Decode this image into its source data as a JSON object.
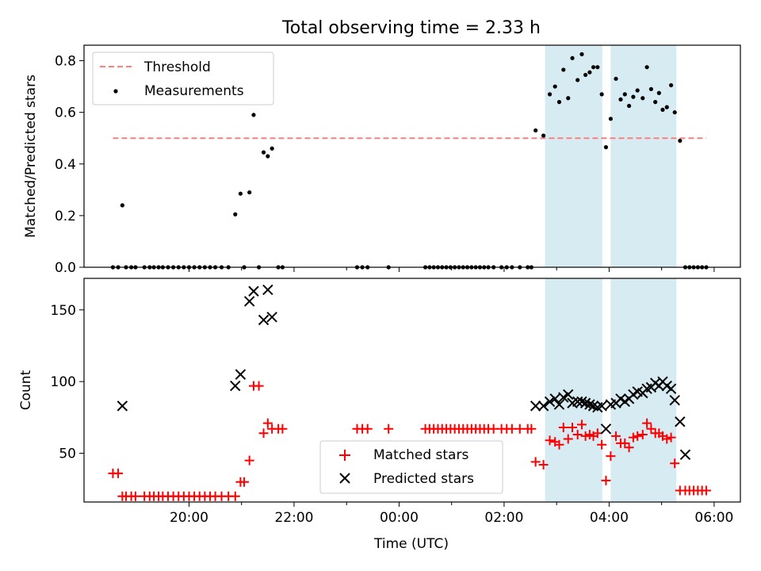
{
  "figure": {
    "title": "Total observing time = 2.33 h",
    "x_axis_label": "Time (UTC)",
    "x_tick_labels": [
      "20:00",
      "22:00",
      "00:00",
      "02:00",
      "04:00",
      "06:00"
    ]
  },
  "colors": {
    "threshold": "#ff7f7f",
    "measurement": "#000000",
    "matched": "#ff0000",
    "predicted": "#000000",
    "observing_span": "#add8e6"
  },
  "chart_data": [
    {
      "type": "scatter",
      "panel": "top",
      "ylabel": "Matched/Predicted stars",
      "xunit": "hours since 18:00 UTC",
      "xlim": [
        18.0,
        30.5
      ],
      "ylim": [
        0.0,
        0.86
      ],
      "y_ticks": [
        0.0,
        0.2,
        0.4,
        0.6,
        0.8
      ],
      "y_tick_labels": [
        "0.0",
        "0.2",
        "0.4",
        "0.6",
        "0.8"
      ],
      "legend": {
        "placement": "top-left",
        "entries": [
          "Threshold",
          "Measurements"
        ]
      },
      "threshold": {
        "name": "Threshold",
        "y": 0.5,
        "x_range": [
          18.55,
          29.85
        ]
      },
      "observing_spans": [
        [
          26.78,
          27.87
        ],
        [
          28.03,
          29.28
        ]
      ],
      "series": [
        {
          "name": "Measurements",
          "points": [
            [
              18.55,
              0
            ],
            [
              18.65,
              0
            ],
            [
              18.73,
              0.24
            ],
            [
              18.8,
              0
            ],
            [
              18.9,
              0
            ],
            [
              18.98,
              0
            ],
            [
              19.15,
              0
            ],
            [
              19.25,
              0
            ],
            [
              19.33,
              0
            ],
            [
              19.42,
              0
            ],
            [
              19.5,
              0
            ],
            [
              19.6,
              0
            ],
            [
              19.7,
              0
            ],
            [
              19.8,
              0
            ],
            [
              19.9,
              0
            ],
            [
              20.0,
              0
            ],
            [
              20.1,
              0
            ],
            [
              20.2,
              0
            ],
            [
              20.3,
              0
            ],
            [
              20.4,
              0
            ],
            [
              20.5,
              0
            ],
            [
              20.62,
              0
            ],
            [
              20.75,
              0
            ],
            [
              20.88,
              0.205
            ],
            [
              20.98,
              0.285
            ],
            [
              21.05,
              0
            ],
            [
              21.15,
              0.29
            ],
            [
              21.23,
              0.59
            ],
            [
              21.33,
              0
            ],
            [
              21.42,
              0.445
            ],
            [
              21.5,
              0.43
            ],
            [
              21.58,
              0.46
            ],
            [
              21.7,
              0
            ],
            [
              21.78,
              0
            ],
            [
              23.2,
              0
            ],
            [
              23.3,
              0
            ],
            [
              23.4,
              0
            ],
            [
              23.8,
              0
            ],
            [
              24.5,
              0
            ],
            [
              24.58,
              0
            ],
            [
              24.66,
              0
            ],
            [
              24.74,
              0
            ],
            [
              24.82,
              0
            ],
            [
              24.9,
              0
            ],
            [
              24.98,
              0
            ],
            [
              25.06,
              0
            ],
            [
              25.14,
              0
            ],
            [
              25.22,
              0
            ],
            [
              25.3,
              0
            ],
            [
              25.38,
              0
            ],
            [
              25.46,
              0
            ],
            [
              25.54,
              0
            ],
            [
              25.62,
              0
            ],
            [
              25.7,
              0
            ],
            [
              25.8,
              0
            ],
            [
              25.95,
              0
            ],
            [
              26.05,
              0
            ],
            [
              26.15,
              0
            ],
            [
              26.3,
              0
            ],
            [
              26.45,
              0
            ],
            [
              26.52,
              0
            ],
            [
              26.6,
              0.53
            ],
            [
              26.75,
              0.51
            ],
            [
              26.87,
              0.67
            ],
            [
              26.97,
              0.7
            ],
            [
              27.05,
              0.64
            ],
            [
              27.13,
              0.765
            ],
            [
              27.22,
              0.655
            ],
            [
              27.3,
              0.81
            ],
            [
              27.4,
              0.725
            ],
            [
              27.48,
              0.825
            ],
            [
              27.55,
              0.745
            ],
            [
              27.63,
              0.755
            ],
            [
              27.7,
              0.775
            ],
            [
              27.78,
              0.775
            ],
            [
              27.86,
              0.67
            ],
            [
              27.94,
              0.465
            ],
            [
              28.03,
              0.575
            ],
            [
              28.13,
              0.73
            ],
            [
              28.22,
              0.65
            ],
            [
              28.3,
              0.67
            ],
            [
              28.38,
              0.625
            ],
            [
              28.46,
              0.66
            ],
            [
              28.54,
              0.685
            ],
            [
              28.64,
              0.655
            ],
            [
              28.72,
              0.775
            ],
            [
              28.8,
              0.69
            ],
            [
              28.88,
              0.64
            ],
            [
              28.95,
              0.675
            ],
            [
              29.02,
              0.61
            ],
            [
              29.1,
              0.62
            ],
            [
              29.18,
              0.705
            ],
            [
              29.25,
              0.6
            ],
            [
              29.35,
              0.49
            ],
            [
              29.45,
              0
            ],
            [
              29.53,
              0
            ],
            [
              29.61,
              0
            ],
            [
              29.69,
              0
            ],
            [
              29.77,
              0
            ],
            [
              29.85,
              0
            ]
          ]
        }
      ]
    },
    {
      "type": "scatter",
      "panel": "bottom",
      "ylabel": "Count",
      "xunit": "hours since 18:00 UTC",
      "xlim": [
        18.0,
        30.5
      ],
      "ylim": [
        16,
        172
      ],
      "y_ticks": [
        50,
        100,
        150
      ],
      "y_tick_labels": [
        "50",
        "100",
        "150"
      ],
      "legend": {
        "placement": "lower-center",
        "entries": [
          "Matched stars",
          "Predicted stars"
        ]
      },
      "observing_spans": [
        [
          26.78,
          27.87
        ],
        [
          28.03,
          29.28
        ]
      ],
      "series": [
        {
          "name": "Matched stars",
          "marker": "plus",
          "points": [
            [
              18.55,
              36
            ],
            [
              18.65,
              36
            ],
            [
              18.73,
              20
            ],
            [
              18.8,
              20
            ],
            [
              18.9,
              20
            ],
            [
              18.98,
              20
            ],
            [
              19.15,
              20
            ],
            [
              19.25,
              20
            ],
            [
              19.33,
              20
            ],
            [
              19.42,
              20
            ],
            [
              19.5,
              20
            ],
            [
              19.6,
              20
            ],
            [
              19.7,
              20
            ],
            [
              19.8,
              20
            ],
            [
              19.9,
              20
            ],
            [
              20.0,
              20
            ],
            [
              20.1,
              20
            ],
            [
              20.2,
              20
            ],
            [
              20.3,
              20
            ],
            [
              20.4,
              20
            ],
            [
              20.5,
              20
            ],
            [
              20.62,
              20
            ],
            [
              20.75,
              20
            ],
            [
              20.88,
              20
            ],
            [
              20.98,
              30
            ],
            [
              21.05,
              30
            ],
            [
              21.15,
              45
            ],
            [
              21.23,
              97
            ],
            [
              21.33,
              97
            ],
            [
              21.42,
              64
            ],
            [
              21.5,
              71
            ],
            [
              21.58,
              67
            ],
            [
              21.7,
              67
            ],
            [
              21.78,
              67
            ],
            [
              23.2,
              67
            ],
            [
              23.3,
              67
            ],
            [
              23.4,
              67
            ],
            [
              23.8,
              67
            ],
            [
              24.5,
              67
            ],
            [
              24.58,
              67
            ],
            [
              24.66,
              67
            ],
            [
              24.74,
              67
            ],
            [
              24.82,
              67
            ],
            [
              24.9,
              67
            ],
            [
              24.98,
              67
            ],
            [
              25.06,
              67
            ],
            [
              25.14,
              67
            ],
            [
              25.22,
              67
            ],
            [
              25.3,
              67
            ],
            [
              25.38,
              67
            ],
            [
              25.46,
              67
            ],
            [
              25.54,
              67
            ],
            [
              25.62,
              67
            ],
            [
              25.7,
              67
            ],
            [
              25.8,
              67
            ],
            [
              25.95,
              67
            ],
            [
              26.05,
              67
            ],
            [
              26.15,
              67
            ],
            [
              26.3,
              67
            ],
            [
              26.45,
              67
            ],
            [
              26.52,
              67
            ],
            [
              26.6,
              44
            ],
            [
              26.75,
              42
            ],
            [
              26.87,
              59
            ],
            [
              26.97,
              58
            ],
            [
              27.05,
              56
            ],
            [
              27.13,
              68
            ],
            [
              27.22,
              60
            ],
            [
              27.3,
              68
            ],
            [
              27.4,
              63
            ],
            [
              27.48,
              70
            ],
            [
              27.55,
              62
            ],
            [
              27.63,
              63
            ],
            [
              27.7,
              62
            ],
            [
              27.78,
              64
            ],
            [
              27.86,
              56
            ],
            [
              27.94,
              31
            ],
            [
              28.03,
              48
            ],
            [
              28.13,
              62
            ],
            [
              28.22,
              57
            ],
            [
              28.3,
              57
            ],
            [
              28.38,
              54
            ],
            [
              28.46,
              61
            ],
            [
              28.54,
              62
            ],
            [
              28.64,
              63
            ],
            [
              28.72,
              71
            ],
            [
              28.8,
              67
            ],
            [
              28.88,
              64
            ],
            [
              28.95,
              64
            ],
            [
              29.02,
              62
            ],
            [
              29.1,
              60
            ],
            [
              29.18,
              61
            ],
            [
              29.25,
              43
            ],
            [
              29.35,
              24
            ],
            [
              29.45,
              24
            ],
            [
              29.53,
              24
            ],
            [
              29.61,
              24
            ],
            [
              29.69,
              24
            ],
            [
              29.77,
              24
            ],
            [
              29.85,
              24
            ]
          ]
        },
        {
          "name": "Predicted stars",
          "marker": "x",
          "points": [
            [
              18.73,
              83
            ],
            [
              20.88,
              97
            ],
            [
              20.98,
              105
            ],
            [
              21.15,
              156
            ],
            [
              21.23,
              163
            ],
            [
              21.42,
              143
            ],
            [
              21.5,
              164
            ],
            [
              21.58,
              145
            ],
            [
              26.6,
              83
            ],
            [
              26.75,
              83
            ],
            [
              26.87,
              86
            ],
            [
              26.97,
              88
            ],
            [
              27.05,
              84
            ],
            [
              27.13,
              89
            ],
            [
              27.22,
              91
            ],
            [
              27.3,
              85
            ],
            [
              27.4,
              86
            ],
            [
              27.48,
              86
            ],
            [
              27.55,
              85
            ],
            [
              27.63,
              84
            ],
            [
              27.7,
              83
            ],
            [
              27.78,
              82
            ],
            [
              27.86,
              83
            ],
            [
              27.94,
              67
            ],
            [
              28.03,
              84
            ],
            [
              28.13,
              85
            ],
            [
              28.22,
              88
            ],
            [
              28.3,
              86
            ],
            [
              28.38,
              88
            ],
            [
              28.46,
              91
            ],
            [
              28.54,
              93
            ],
            [
              28.64,
              92
            ],
            [
              28.72,
              95
            ],
            [
              28.8,
              96
            ],
            [
              28.88,
              99
            ],
            [
              28.95,
              97
            ],
            [
              29.02,
              100
            ],
            [
              29.1,
              97
            ],
            [
              29.18,
              95
            ],
            [
              29.25,
              87
            ],
            [
              29.35,
              72
            ],
            [
              29.45,
              49
            ]
          ]
        }
      ]
    }
  ]
}
